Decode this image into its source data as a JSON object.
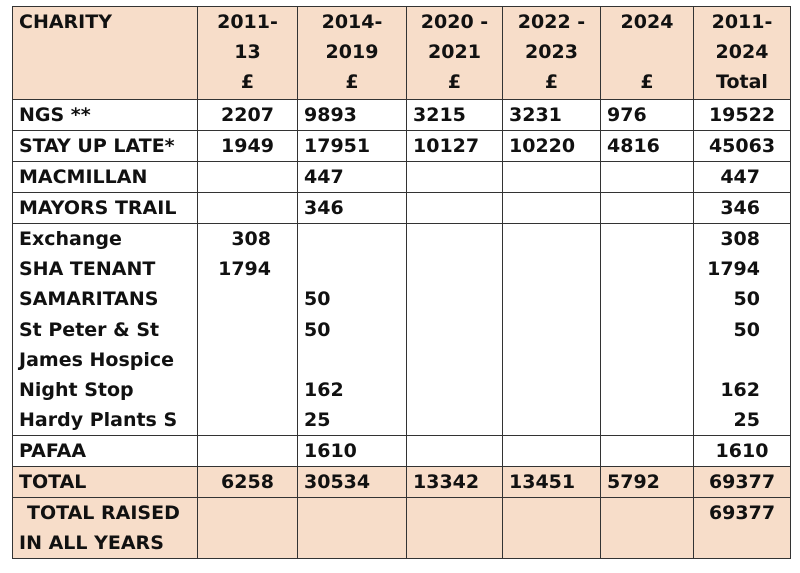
{
  "header": {
    "charity": "CHARITY",
    "p1": [
      "2011-",
      "13",
      "£"
    ],
    "p2": [
      "2014-",
      "2019",
      "£"
    ],
    "p3": [
      "2020 -",
      "2021",
      "£"
    ],
    "p4": [
      "2022 -",
      "2023",
      "£"
    ],
    "p5": [
      "2024",
      "",
      "£"
    ],
    "p6": [
      "2011-",
      "2024",
      "Total"
    ]
  },
  "rows": {
    "ngs": {
      "name": "NGS **",
      "v": [
        "2207",
        "9893",
        "3215",
        "3231",
        "976",
        "19522"
      ]
    },
    "sul": {
      "name": "STAY UP LATE*",
      "v": [
        "1949",
        "17951",
        "10127",
        "10220",
        "4816",
        "45063"
      ]
    },
    "mac": {
      "name": "MACMILLAN",
      "v": [
        "",
        "447",
        "",
        "",
        "",
        "447"
      ]
    },
    "mayor": {
      "name": "MAYORS TRAIL",
      "v": [
        "",
        "346",
        "",
        "",
        "",
        "346"
      ]
    }
  },
  "group": {
    "names": [
      "Exchange",
      "SHA TENANT",
      "SAMARITANS",
      "St Peter & St",
      "James Hospice",
      "Night Stop",
      "Hardy Plants S"
    ],
    "p1": [
      "308",
      "1794",
      "",
      "",
      "",
      "",
      ""
    ],
    "p2": [
      "",
      "",
      "50",
      "50",
      "",
      "162",
      "25"
    ],
    "total": [
      "308",
      "1794",
      "50",
      "50",
      "",
      "162",
      "25"
    ]
  },
  "pafaa": {
    "name": "PAFAA",
    "v": [
      "",
      "1610",
      "",
      "",
      "",
      "1610"
    ]
  },
  "total": {
    "name": "TOTAL",
    "v": [
      "6258",
      "30534",
      "13342",
      "13451",
      "5792",
      "69377"
    ]
  },
  "raised": {
    "line1": "TOTAL RAISED",
    "line2": "IN ALL YEARS",
    "value": "69377"
  }
}
